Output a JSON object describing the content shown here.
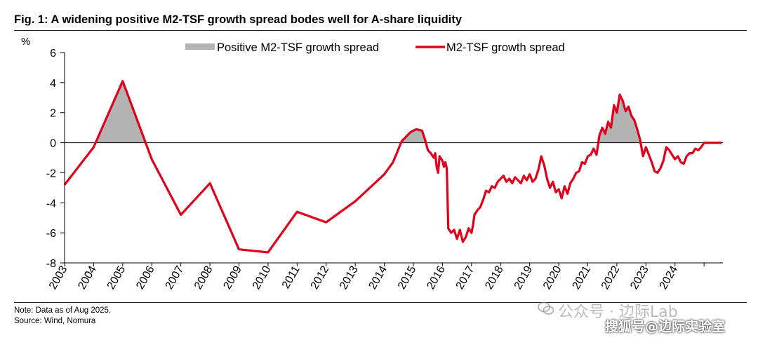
{
  "figure": {
    "title": "Fig. 1: A widening positive M2-TSF growth spread bodes well for A-share liquidity",
    "note": "Note: Data as of Aug 2025.",
    "source": "Source: Wind, Nomura"
  },
  "watermark": {
    "line1": "公众号 · 边际Lab",
    "line2": "搜狐号@边际实验室"
  },
  "colors": {
    "line": "#e0001b",
    "fill": "#b3b3b3",
    "axis": "#000000"
  },
  "chart_data": {
    "type": "area",
    "title": "A widening positive M2-TSF growth spread bodes well for A-share liquidity",
    "ylabel": "%",
    "xlabel": "",
    "ylim": [
      -8,
      6
    ],
    "yticks": [
      "6",
      "4",
      "2",
      "0",
      "-2",
      "-4",
      "-6",
      "-8"
    ],
    "ytick_values": [
      6,
      4,
      2,
      0,
      -2,
      -4,
      -6,
      -8
    ],
    "xlim": [
      2003,
      2025.7
    ],
    "xticks": [
      "2003",
      "2004",
      "2005",
      "2006",
      "2007",
      "2008",
      "2009",
      "2010",
      "2011",
      "2012",
      "2013",
      "2014",
      "2015",
      "2016",
      "2017",
      "2018",
      "2019",
      "2020",
      "2021",
      "2022",
      "2023",
      "2024"
    ],
    "legend": {
      "position": "top",
      "fill_label": "Positive M2-TSF growth spread",
      "line_label": "M2-TSF growth spread"
    },
    "series": [
      {
        "name": "M2-TSF growth spread",
        "x": [
          2003.0,
          2004.0,
          2005.0,
          2006.0,
          2007.0,
          2008.0,
          2009.0,
          2010.0,
          2011.0,
          2012.0,
          2013.0,
          2014.0,
          2014.3,
          2014.6,
          2014.9,
          2015.1,
          2015.3,
          2015.4,
          2015.5,
          2015.6,
          2015.7,
          2015.75,
          2015.8,
          2015.85,
          2015.9,
          2016.0,
          2016.05,
          2016.1,
          2016.15,
          2016.2,
          2016.3,
          2016.4,
          2016.5,
          2016.6,
          2016.7,
          2016.8,
          2016.9,
          2017.0,
          2017.05,
          2017.1,
          2017.2,
          2017.3,
          2017.4,
          2017.5,
          2017.6,
          2017.7,
          2017.8,
          2017.9,
          2018.0,
          2018.1,
          2018.2,
          2018.3,
          2018.4,
          2018.5,
          2018.6,
          2018.7,
          2018.8,
          2018.9,
          2019.0,
          2019.1,
          2019.2,
          2019.3,
          2019.4,
          2019.5,
          2019.6,
          2019.7,
          2019.8,
          2019.9,
          2020.0,
          2020.1,
          2020.2,
          2020.3,
          2020.4,
          2020.5,
          2020.6,
          2020.7,
          2020.8,
          2020.9,
          2021.0,
          2021.1,
          2021.2,
          2021.3,
          2021.4,
          2021.5,
          2021.6,
          2021.7,
          2021.8,
          2021.9,
          2022.0,
          2022.1,
          2022.2,
          2022.3,
          2022.4,
          2022.5,
          2022.6,
          2022.7,
          2022.8,
          2022.9,
          2023.0,
          2023.1,
          2023.2,
          2023.3,
          2023.4,
          2023.5,
          2023.6,
          2023.7,
          2023.8,
          2023.9,
          2024.0,
          2024.1,
          2024.2,
          2024.3,
          2024.4,
          2024.5,
          2024.6,
          2024.7,
          2024.8,
          2024.9,
          2025.0,
          2025.1,
          2025.2,
          2025.3,
          2025.4,
          2025.5,
          2025.6
        ],
        "values": [
          -2.8,
          -0.3,
          4.1,
          -1.1,
          -4.8,
          -2.7,
          -7.1,
          -7.3,
          -4.6,
          -5.3,
          -3.9,
          -2.1,
          -1.3,
          0.1,
          0.7,
          0.9,
          0.8,
          0.2,
          -0.5,
          -0.7,
          -1.0,
          -0.7,
          -1.6,
          -2.0,
          -0.9,
          -1.2,
          -1.6,
          -1.3,
          -1.7,
          -5.7,
          -6.0,
          -5.8,
          -6.4,
          -5.8,
          -6.6,
          -6.3,
          -5.7,
          -6.0,
          -5.5,
          -4.8,
          -4.5,
          -4.3,
          -3.8,
          -3.2,
          -3.3,
          -2.9,
          -3.0,
          -2.6,
          -2.4,
          -2.2,
          -2.6,
          -2.4,
          -2.7,
          -2.3,
          -2.5,
          -2.7,
          -2.2,
          -2.5,
          -2.1,
          -2.6,
          -2.4,
          -1.8,
          -0.9,
          -1.5,
          -2.4,
          -3.0,
          -2.6,
          -3.3,
          -3.1,
          -3.7,
          -2.9,
          -3.4,
          -2.7,
          -2.4,
          -2.0,
          -1.9,
          -1.3,
          -1.4,
          -0.9,
          -0.8,
          -0.4,
          -0.8,
          0.5,
          1.0,
          0.6,
          1.4,
          1.0,
          2.5,
          2.0,
          3.2,
          2.8,
          2.1,
          2.4,
          1.8,
          1.5,
          0.9,
          0.2,
          -0.9,
          -0.3,
          -0.8,
          -1.3,
          -1.9,
          -2.0,
          -1.7,
          -1.2,
          -0.3,
          -0.5,
          -0.8,
          -1.1,
          -0.9,
          -1.3,
          -1.4,
          -0.9,
          -0.7,
          -0.7,
          -0.4,
          -0.5,
          -0.3,
          0.0,
          0.0,
          0.0,
          0.0,
          0.0,
          0.0,
          0.0
        ]
      }
    ]
  }
}
